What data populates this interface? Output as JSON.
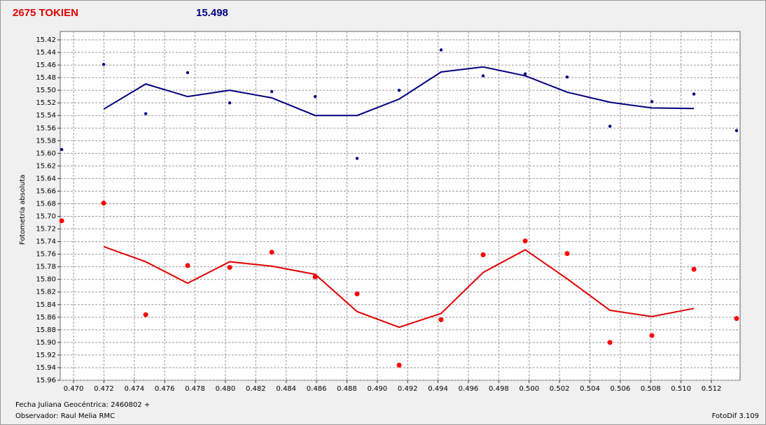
{
  "chart_data": {
    "type": "line",
    "title": "2675 TOKIEN",
    "subtitle": "15.498",
    "ylabel": "Fotometría absoluta",
    "xlabel": "Fecha Juliana Geocéntrica: 2460802 +",
    "observer": "Observador: Raul Melia RMC",
    "software": "FotoDif 3.109",
    "y_inverted": true,
    "grid": true,
    "x": [
      0.46922,
      0.47198,
      0.47475,
      0.47751,
      0.48028,
      0.48305,
      0.48591,
      0.48867,
      0.49144,
      0.4942,
      0.49697,
      0.49974,
      0.5025,
      0.50532,
      0.50808,
      0.51085,
      0.51366
    ],
    "series": [
      {
        "color": "#000080",
        "mode": "markers",
        "values": [
          15.594,
          15.459,
          15.537,
          15.472,
          15.52,
          15.502,
          15.51,
          15.608,
          15.5,
          15.436,
          15.477,
          15.474,
          15.479,
          15.557,
          15.518,
          15.506,
          15.564
        ]
      },
      {
        "color": "#000080",
        "mode": "line",
        "values": [
          null,
          15.53,
          15.49,
          15.51,
          15.5,
          15.512,
          15.54,
          15.54,
          15.514,
          15.471,
          15.463,
          15.477,
          15.503,
          15.519,
          15.528,
          15.529,
          null
        ]
      },
      {
        "color": "#ff0000",
        "mode": "markers",
        "values": [
          15.707,
          15.679,
          15.856,
          15.778,
          15.781,
          15.757,
          15.796,
          15.823,
          15.936,
          15.864,
          15.761,
          15.739,
          15.759,
          15.9,
          15.889,
          15.784,
          15.862
        ]
      },
      {
        "color": "#e00000",
        "mode": "line",
        "values": [
          null,
          15.748,
          15.772,
          15.806,
          15.772,
          15.779,
          15.792,
          15.851,
          15.876,
          15.854,
          15.789,
          15.753,
          15.799,
          15.849,
          15.859,
          15.846,
          null
        ]
      }
    ],
    "xlim": [
      0.46912,
      0.51389
    ],
    "ylim": [
      15.96,
      15.4067
    ],
    "xticks": [
      {
        "value": 0.47,
        "label": "0.470"
      },
      0.472,
      0.474,
      0.476,
      0.478,
      {
        "value": 0.48,
        "label": "0.480"
      },
      0.482,
      0.484,
      0.486,
      0.488,
      {
        "value": 0.49,
        "label": "0.490"
      },
      0.492,
      0.494,
      0.496,
      0.498,
      {
        "value": 0.5,
        "label": "0.500"
      },
      0.502,
      0.504,
      0.506,
      0.508,
      {
        "value": 0.51,
        "label": "0.510"
      },
      0.512
    ],
    "yticks": [
      15.42,
      15.44,
      15.46,
      15.48,
      {
        "value": 15.5,
        "label": "15.50"
      },
      15.52,
      15.54,
      15.56,
      15.58,
      {
        "value": 15.6,
        "label": "15.60"
      },
      15.62,
      15.64,
      15.66,
      15.68,
      {
        "value": 15.7,
        "label": "15.70"
      },
      15.72,
      15.74,
      15.76,
      15.78,
      {
        "value": 15.8,
        "label": "15.80"
      },
      15.82,
      15.84,
      15.86,
      15.88,
      {
        "value": 15.9,
        "label": "15.90"
      },
      15.92,
      15.94,
      15.96
    ]
  }
}
